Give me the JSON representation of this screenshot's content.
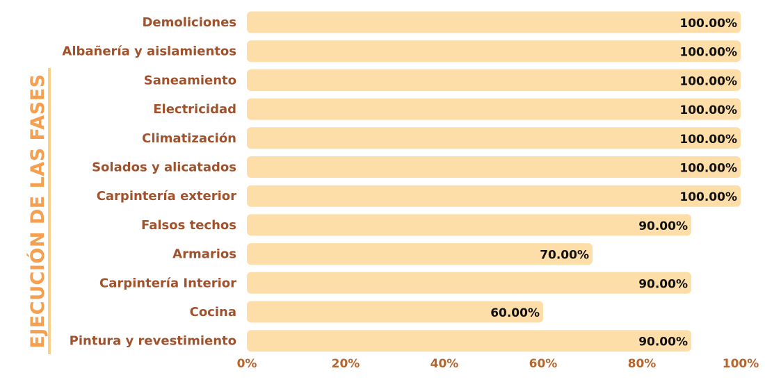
{
  "colors": {
    "bar": "#FDDDA8",
    "category_text": "#A0522D",
    "axis_text": "#B5652E",
    "ylabel": "#F5A050",
    "value_text": "#111111",
    "accent_line": "#F8D08A"
  },
  "chart_data": {
    "type": "bar",
    "orientation": "horizontal",
    "title": "",
    "xlabel": "",
    "ylabel": "EJECUCIÓN DE LAS FASES",
    "categories": [
      "Demoliciones",
      "Albañería y aislamientos",
      "Saneamiento",
      "Electricidad",
      "Climatización",
      "Solados y alicatados",
      "Carpintería exterior",
      "Falsos techos",
      "Armarios",
      "Carpintería Interior",
      "Cocina",
      "Pintura y revestimiento"
    ],
    "values": [
      100,
      100,
      100,
      100,
      100,
      100,
      100,
      90,
      70,
      90,
      60,
      90
    ],
    "value_labels": [
      "100.00%",
      "100.00%",
      "100.00%",
      "100.00%",
      "100.00%",
      "100.00%",
      "100.00%",
      "90.00%",
      "70.00%",
      "90.00%",
      "60.00%",
      "90.00%"
    ],
    "xlim": [
      0,
      100
    ],
    "xticks": [
      "0%",
      "20%",
      "40%",
      "60%",
      "80%",
      "100%"
    ],
    "grid": false,
    "legend": "none"
  }
}
